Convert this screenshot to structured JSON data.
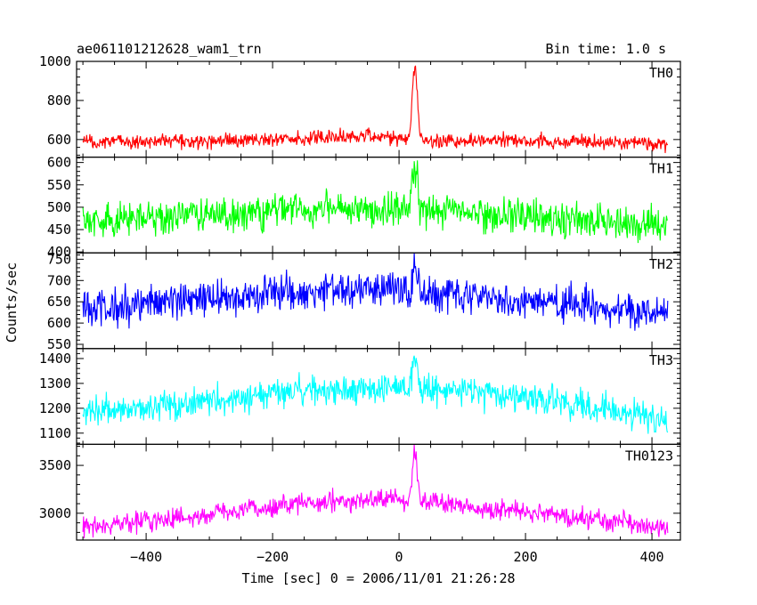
{
  "header": {
    "title": "ae061101212628_wam1_trn",
    "bin_time": "Bin time: 1.0 s"
  },
  "axes": {
    "ylabel": "Counts/sec",
    "xlabel": "Time [sec] 0 = 2006/11/01 21:26:28"
  },
  "chart_data": {
    "type": "line",
    "title": "ae061101212628_wam1_trn",
    "xlabel": "Time [sec] 0 = 2006/11/01 21:26:28",
    "ylabel": "Counts/sec",
    "xlim": [
      -510,
      445
    ],
    "x_range": [
      -500,
      425
    ],
    "x_step": 1.0,
    "x_ticks": [
      -400,
      -200,
      0,
      200,
      400
    ],
    "x_tick_labels": [
      "−400",
      "−200",
      "0",
      "200",
      "400"
    ],
    "series": [
      {
        "name": "TH0",
        "color": "#ff0000",
        "ylim": [
          510,
          1000
        ],
        "yticks": [
          600,
          800,
          1000
        ],
        "baseline_anchors": [
          [
            -500,
            585
          ],
          [
            -200,
            600
          ],
          [
            -50,
            615
          ],
          [
            0,
            605
          ],
          [
            100,
            595
          ],
          [
            300,
            590
          ],
          [
            425,
            580
          ]
        ],
        "noise": 25,
        "burst": {
          "t": 25,
          "peak": 1000,
          "width": 4
        }
      },
      {
        "name": "TH1",
        "color": "#00ff00",
        "ylim": [
          398,
          612
        ],
        "yticks": [
          400,
          450,
          500,
          550,
          600
        ],
        "baseline_anchors": [
          [
            -500,
            470
          ],
          [
            -300,
            480
          ],
          [
            -150,
            495
          ],
          [
            0,
            495
          ],
          [
            150,
            485
          ],
          [
            300,
            470
          ],
          [
            425,
            460
          ]
        ],
        "noise": 25,
        "burst": {
          "t": 25,
          "peak": 612,
          "width": 4
        }
      },
      {
        "name": "TH2",
        "color": "#0000ff",
        "ylim": [
          540,
          765
        ],
        "yticks": [
          550,
          600,
          650,
          700,
          750
        ],
        "baseline_anchors": [
          [
            -500,
            635
          ],
          [
            -300,
            655
          ],
          [
            -150,
            675
          ],
          [
            0,
            675
          ],
          [
            150,
            660
          ],
          [
            300,
            640
          ],
          [
            425,
            620
          ]
        ],
        "noise": 28,
        "burst": {
          "t": 25,
          "peak": 730,
          "width": 4
        }
      },
      {
        "name": "TH3",
        "color": "#00ffff",
        "ylim": [
          1055,
          1440
        ],
        "yticks": [
          1100,
          1200,
          1300,
          1400
        ],
        "baseline_anchors": [
          [
            -500,
            1180
          ],
          [
            -300,
            1230
          ],
          [
            -150,
            1275
          ],
          [
            0,
            1280
          ],
          [
            150,
            1260
          ],
          [
            300,
            1210
          ],
          [
            425,
            1150
          ]
        ],
        "noise": 40,
        "burst": {
          "t": 25,
          "peak": 1420,
          "width": 4
        }
      },
      {
        "name": "TH0123",
        "color": "#ff00ff",
        "ylim": [
          2720,
          3720
        ],
        "yticks": [
          3000,
          3500
        ],
        "baseline_anchors": [
          [
            -500,
            2860
          ],
          [
            -300,
            2980
          ],
          [
            -150,
            3110
          ],
          [
            0,
            3150
          ],
          [
            150,
            3050
          ],
          [
            300,
            2950
          ],
          [
            425,
            2830
          ]
        ],
        "noise": 70,
        "burst": {
          "t": 25,
          "peak": 3720,
          "width": 4
        }
      }
    ]
  }
}
